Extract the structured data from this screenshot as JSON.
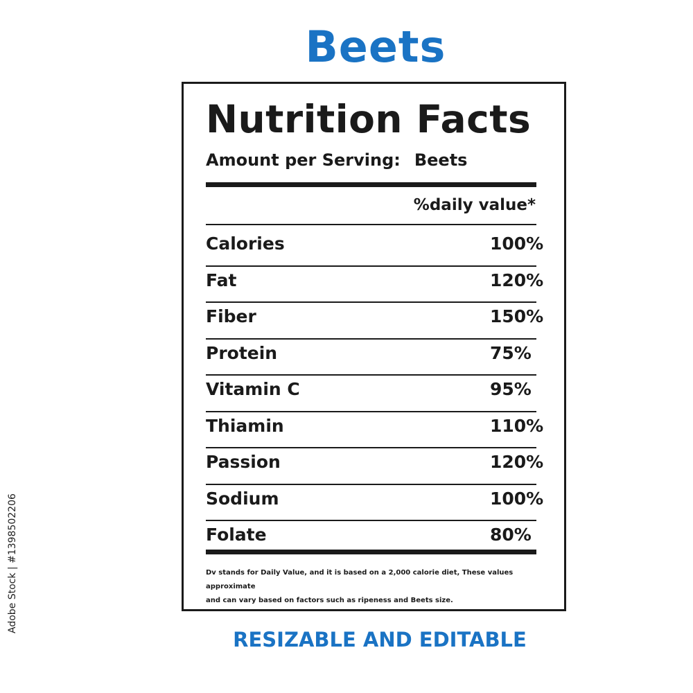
{
  "product_title": "Beets",
  "label": {
    "heading": "Nutrition Facts",
    "serving_label": "Amount per Serving:",
    "serving_value": "Beets",
    "dv_header": "%daily value*",
    "rows": [
      {
        "nutrient": "Calories",
        "percent": "100%"
      },
      {
        "nutrient": "Fat",
        "percent": "120%"
      },
      {
        "nutrient": "Fiber",
        "percent": "150%"
      },
      {
        "nutrient": "Protein",
        "percent": "75%"
      },
      {
        "nutrient": "Vitamin C",
        "percent": "95%"
      },
      {
        "nutrient": "Thiamin",
        "percent": "110%"
      },
      {
        "nutrient": "Passion",
        "percent": "120%"
      },
      {
        "nutrient": "Sodium",
        "percent": "100%"
      },
      {
        "nutrient": "Folate",
        "percent": "80%"
      }
    ],
    "footnote_line1": "Dv stands for Daily Value, and it is based on a 2,000 calorie diet, These values approximate",
    "footnote_line2": "and can vary based on factors such as ripeness and Beets size."
  },
  "bottom_caption": "RESIZABLE AND EDITABLE",
  "stock_id": "Adobe Stock | #1398502206",
  "colors": {
    "accent_blue": "#1a73c4",
    "text": "#1a1a1a"
  }
}
